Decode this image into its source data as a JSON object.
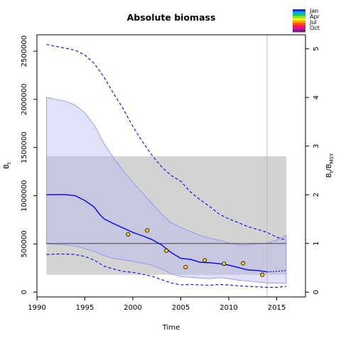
{
  "chart_data": {
    "type": "line",
    "title": "Absolute biomass",
    "xlabel": "Time",
    "ylabel": "B",
    "ylabel_sub": "t",
    "y2label": "B",
    "y2label_sub": "t",
    "y2label_mid": "/B",
    "y2label_sub2": "MSY",
    "xlim": [
      1990,
      2018
    ],
    "ylim": [
      -50000,
      2670000
    ],
    "x_ticks": [
      1990,
      1995,
      2000,
      2005,
      2010,
      2015
    ],
    "y_ticks": [
      0,
      500000,
      1000000,
      1500000,
      2000000,
      2500000
    ],
    "y2_ticks": [
      0,
      1,
      2,
      3,
      4,
      5
    ],
    "bmsy": 505000,
    "bmsy_band": {
      "x": [
        1991,
        2016
      ],
      "y": [
        180000,
        1410000
      ]
    },
    "last_obs_year": 2014,
    "colors": {
      "estimate": "#0000ff",
      "ci_band": "#b8b8f5",
      "msy_band": "#d3d3d3",
      "overlap": "#b4b4d3",
      "reference_line": "#444444",
      "vline": "#bbbbbb",
      "points": "#ffd500"
    },
    "legend": {
      "placement": "top-right",
      "labels": [
        "Jan",
        "Apr",
        "Jul",
        "Oct"
      ],
      "colors": [
        "#1c2fe0",
        "#0ea0f5",
        "#10d060",
        "#a0e020",
        "#ffee00",
        "#ffa000",
        "#ff5000",
        "#ff1060",
        "#d010a0",
        "#7a1a80"
      ]
    },
    "series": [
      {
        "role": "estimate",
        "x": [
          1991,
          1992,
          1993,
          1994,
          1995,
          1996,
          1996.5,
          1997,
          1998,
          1999,
          2000,
          2001,
          2002,
          2003,
          2004,
          2005,
          2006,
          2007,
          2008,
          2009,
          2010,
          2011,
          2012,
          2013,
          2014
        ],
        "y": [
          1010000,
          1012000,
          1012000,
          1000000,
          950000,
          880000,
          810000,
          760000,
          710000,
          665000,
          620000,
          585000,
          545000,
          490000,
          410000,
          350000,
          340000,
          310000,
          305000,
          295000,
          280000,
          255000,
          230000,
          225000,
          210000
        ]
      },
      {
        "role": "forecast",
        "x": [
          2014,
          2015,
          2016
        ],
        "y": [
          210000,
          215000,
          225000
        ]
      },
      {
        "role": "upper-ci",
        "x": [
          1991,
          1992,
          1993,
          1994,
          1995,
          1996,
          1997,
          1998,
          1999,
          2000,
          2001,
          2002,
          2003,
          2004,
          2005,
          2006,
          2007,
          2008,
          2009,
          2010,
          2011,
          2012,
          2013,
          2014,
          2015,
          2016
        ],
        "y": [
          2570000,
          2550000,
          2530000,
          2510000,
          2460000,
          2370000,
          2230000,
          2060000,
          1900000,
          1720000,
          1560000,
          1420000,
          1300000,
          1210000,
          1150000,
          1040000,
          960000,
          890000,
          810000,
          760000,
          720000,
          680000,
          650000,
          620000,
          570000,
          540000
        ]
      },
      {
        "role": "lower-ci",
        "x": [
          1991,
          1992,
          1993,
          1994,
          1995,
          1996,
          1997,
          1998,
          1999,
          2000,
          2001,
          2002,
          2003,
          2004,
          2005,
          2006,
          2007,
          2008,
          2009,
          2010,
          2011,
          2012,
          2013,
          2014,
          2015,
          2016
        ],
        "y": [
          390000,
          395000,
          395000,
          390000,
          370000,
          330000,
          270000,
          240000,
          215000,
          205000,
          185000,
          165000,
          130000,
          95000,
          75000,
          80000,
          75000,
          70000,
          80000,
          75000,
          65000,
          60000,
          55000,
          50000,
          50000,
          60000
        ]
      },
      {
        "role": "band-upper",
        "x": [
          1991,
          1992,
          1993,
          1994,
          1995,
          1996,
          1997,
          1998,
          1999,
          2000,
          2001,
          2002,
          2003,
          2004,
          2005,
          2006,
          2007,
          2008,
          2009,
          2010,
          2011,
          2012,
          2013,
          2014,
          2015,
          2016
        ],
        "y": [
          2020000,
          2000000,
          1980000,
          1940000,
          1860000,
          1730000,
          1540000,
          1390000,
          1260000,
          1140000,
          1030000,
          920000,
          810000,
          720000,
          670000,
          630000,
          590000,
          560000,
          540000,
          510000,
          490000,
          490000,
          500000,
          510000,
          540000,
          590000
        ]
      },
      {
        "role": "band-lower",
        "x": [
          1991,
          1992,
          1993,
          1994,
          1995,
          1996,
          1997,
          1998,
          1999,
          2000,
          2001,
          2002,
          2003,
          2004,
          2005,
          2006,
          2007,
          2008,
          2009,
          2010,
          2011,
          2012,
          2013,
          2014,
          2015,
          2016
        ],
        "y": [
          500000,
          495000,
          490000,
          480000,
          450000,
          420000,
          380000,
          350000,
          335000,
          320000,
          300000,
          280000,
          240000,
          190000,
          160000,
          155000,
          145000,
          140000,
          150000,
          140000,
          125000,
          115000,
          105000,
          95000,
          95000,
          95000
        ]
      }
    ],
    "points": {
      "x": [
        1999.5,
        2001.5,
        2003.5,
        2005.5,
        2007.5,
        2009.5,
        2011.5,
        2013.5
      ],
      "y": [
        600000,
        640000,
        430000,
        260000,
        330000,
        295000,
        300000,
        180000
      ]
    }
  }
}
